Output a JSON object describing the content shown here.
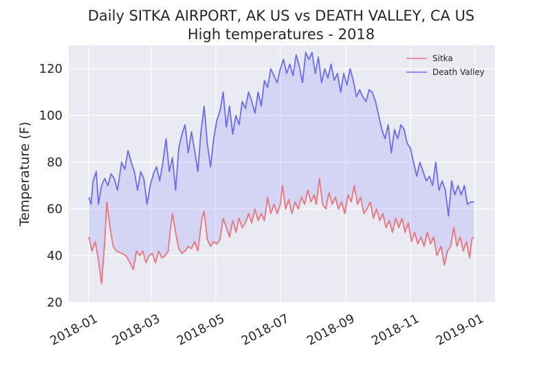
{
  "chart_data": {
    "type": "line",
    "title_line1": "Daily SITKA AIRPORT, AK US vs DEATH VALLEY, CA US",
    "title_line2": "High temperatures - 2018",
    "xlabel": "",
    "ylabel": "Temperature (F)",
    "xlim": [
      "2017-12-13",
      "2019-01-20"
    ],
    "ylim": [
      20,
      130
    ],
    "x_ticks": [
      "2018-01",
      "2018-03",
      "2018-05",
      "2018-07",
      "2018-09",
      "2018-11",
      "2019-01"
    ],
    "y_ticks": [
      20,
      40,
      60,
      80,
      100,
      120
    ],
    "grid": true,
    "legend_position": "upper-right",
    "fill_between": {
      "color": "#5a5aff",
      "alpha": 0.15
    },
    "series": [
      {
        "name": "Sitka",
        "color": "#e8747c",
        "points": [
          [
            "2018-01-01",
            48
          ],
          [
            "2018-01-04",
            42
          ],
          [
            "2018-01-07",
            46
          ],
          [
            "2018-01-10",
            38
          ],
          [
            "2018-01-13",
            28
          ],
          [
            "2018-01-16",
            46
          ],
          [
            "2018-01-18",
            63
          ],
          [
            "2018-01-21",
            52
          ],
          [
            "2018-01-24",
            44
          ],
          [
            "2018-01-27",
            42
          ],
          [
            "2018-02-01",
            41
          ],
          [
            "2018-02-05",
            40
          ],
          [
            "2018-02-09",
            37
          ],
          [
            "2018-02-12",
            34
          ],
          [
            "2018-02-15",
            42
          ],
          [
            "2018-02-18",
            40
          ],
          [
            "2018-02-21",
            42
          ],
          [
            "2018-02-24",
            37
          ],
          [
            "2018-02-27",
            40
          ],
          [
            "2018-03-02",
            41
          ],
          [
            "2018-03-05",
            37
          ],
          [
            "2018-03-08",
            42
          ],
          [
            "2018-03-11",
            39
          ],
          [
            "2018-03-14",
            40
          ],
          [
            "2018-03-17",
            42
          ],
          [
            "2018-03-19",
            51
          ],
          [
            "2018-03-21",
            58
          ],
          [
            "2018-03-24",
            50
          ],
          [
            "2018-03-27",
            43
          ],
          [
            "2018-03-30",
            41
          ],
          [
            "2018-04-02",
            42
          ],
          [
            "2018-04-05",
            44
          ],
          [
            "2018-04-08",
            43
          ],
          [
            "2018-04-11",
            46
          ],
          [
            "2018-04-14",
            42
          ],
          [
            "2018-04-18",
            56
          ],
          [
            "2018-04-20",
            59
          ],
          [
            "2018-04-23",
            47
          ],
          [
            "2018-04-26",
            44
          ],
          [
            "2018-04-29",
            46
          ],
          [
            "2018-05-02",
            45
          ],
          [
            "2018-05-05",
            47
          ],
          [
            "2018-05-08",
            56
          ],
          [
            "2018-05-11",
            52
          ],
          [
            "2018-05-14",
            48
          ],
          [
            "2018-05-17",
            55
          ],
          [
            "2018-05-20",
            50
          ],
          [
            "2018-05-23",
            56
          ],
          [
            "2018-05-26",
            52
          ],
          [
            "2018-05-29",
            54
          ],
          [
            "2018-06-01",
            58
          ],
          [
            "2018-06-04",
            54
          ],
          [
            "2018-06-07",
            60
          ],
          [
            "2018-06-10",
            55
          ],
          [
            "2018-06-13",
            58
          ],
          [
            "2018-06-16",
            55
          ],
          [
            "2018-06-19",
            65
          ],
          [
            "2018-06-22",
            58
          ],
          [
            "2018-06-25",
            62
          ],
          [
            "2018-06-28",
            58
          ],
          [
            "2018-07-01",
            62
          ],
          [
            "2018-07-03",
            70
          ],
          [
            "2018-07-06",
            60
          ],
          [
            "2018-07-09",
            64
          ],
          [
            "2018-07-12",
            58
          ],
          [
            "2018-07-15",
            63
          ],
          [
            "2018-07-18",
            60
          ],
          [
            "2018-07-21",
            65
          ],
          [
            "2018-07-24",
            62
          ],
          [
            "2018-07-27",
            68
          ],
          [
            "2018-07-30",
            63
          ],
          [
            "2018-08-02",
            66
          ],
          [
            "2018-08-04",
            62
          ],
          [
            "2018-08-07",
            73
          ],
          [
            "2018-08-10",
            62
          ],
          [
            "2018-08-13",
            60
          ],
          [
            "2018-08-16",
            67
          ],
          [
            "2018-08-19",
            62
          ],
          [
            "2018-08-22",
            65
          ],
          [
            "2018-08-25",
            60
          ],
          [
            "2018-08-28",
            63
          ],
          [
            "2018-08-31",
            58
          ],
          [
            "2018-09-03",
            66
          ],
          [
            "2018-09-06",
            63
          ],
          [
            "2018-09-09",
            70
          ],
          [
            "2018-09-12",
            62
          ],
          [
            "2018-09-15",
            65
          ],
          [
            "2018-09-18",
            58
          ],
          [
            "2018-09-21",
            60
          ],
          [
            "2018-09-24",
            63
          ],
          [
            "2018-09-27",
            56
          ],
          [
            "2018-09-30",
            60
          ],
          [
            "2018-10-03",
            55
          ],
          [
            "2018-10-06",
            58
          ],
          [
            "2018-10-09",
            52
          ],
          [
            "2018-10-12",
            55
          ],
          [
            "2018-10-15",
            50
          ],
          [
            "2018-10-18",
            56
          ],
          [
            "2018-10-21",
            52
          ],
          [
            "2018-10-24",
            56
          ],
          [
            "2018-10-27",
            50
          ],
          [
            "2018-10-30",
            54
          ],
          [
            "2018-11-02",
            46
          ],
          [
            "2018-11-05",
            50
          ],
          [
            "2018-11-08",
            45
          ],
          [
            "2018-11-11",
            48
          ],
          [
            "2018-11-14",
            44
          ],
          [
            "2018-11-17",
            50
          ],
          [
            "2018-11-20",
            45
          ],
          [
            "2018-11-23",
            48
          ],
          [
            "2018-11-26",
            40
          ],
          [
            "2018-11-30",
            44
          ],
          [
            "2018-12-03",
            36
          ],
          [
            "2018-12-06",
            42
          ],
          [
            "2018-12-09",
            44
          ],
          [
            "2018-12-12",
            52
          ],
          [
            "2018-12-15",
            44
          ],
          [
            "2018-12-18",
            48
          ],
          [
            "2018-12-21",
            42
          ],
          [
            "2018-12-24",
            46
          ],
          [
            "2018-12-27",
            39
          ],
          [
            "2018-12-29",
            47
          ],
          [
            "2018-12-31",
            48
          ]
        ]
      },
      {
        "name": "Death Valley",
        "color": "#6b6bf0",
        "points": [
          [
            "2018-01-01",
            65
          ],
          [
            "2018-01-03",
            62
          ],
          [
            "2018-01-05",
            72
          ],
          [
            "2018-01-08",
            76
          ],
          [
            "2018-01-10",
            62
          ],
          [
            "2018-01-13",
            70
          ],
          [
            "2018-01-16",
            73
          ],
          [
            "2018-01-19",
            70
          ],
          [
            "2018-01-22",
            75
          ],
          [
            "2018-01-25",
            73
          ],
          [
            "2018-01-28",
            68
          ],
          [
            "2018-02-01",
            80
          ],
          [
            "2018-02-04",
            77
          ],
          [
            "2018-02-07",
            85
          ],
          [
            "2018-02-10",
            80
          ],
          [
            "2018-02-13",
            76
          ],
          [
            "2018-02-16",
            68
          ],
          [
            "2018-02-19",
            76
          ],
          [
            "2018-02-22",
            73
          ],
          [
            "2018-02-25",
            62
          ],
          [
            "2018-02-28",
            70
          ],
          [
            "2018-03-03",
            75
          ],
          [
            "2018-03-06",
            78
          ],
          [
            "2018-03-09",
            72
          ],
          [
            "2018-03-12",
            80
          ],
          [
            "2018-03-15",
            90
          ],
          [
            "2018-03-18",
            76
          ],
          [
            "2018-03-21",
            82
          ],
          [
            "2018-03-24",
            68
          ],
          [
            "2018-03-27",
            86
          ],
          [
            "2018-03-30",
            92
          ],
          [
            "2018-04-02",
            96
          ],
          [
            "2018-04-05",
            84
          ],
          [
            "2018-04-08",
            93
          ],
          [
            "2018-04-11",
            85
          ],
          [
            "2018-04-14",
            76
          ],
          [
            "2018-04-17",
            93
          ],
          [
            "2018-04-20",
            104
          ],
          [
            "2018-04-23",
            88
          ],
          [
            "2018-04-26",
            78
          ],
          [
            "2018-04-29",
            90
          ],
          [
            "2018-05-02",
            98
          ],
          [
            "2018-05-05",
            102
          ],
          [
            "2018-05-08",
            110
          ],
          [
            "2018-05-11",
            95
          ],
          [
            "2018-05-14",
            104
          ],
          [
            "2018-05-17",
            92
          ],
          [
            "2018-05-20",
            100
          ],
          [
            "2018-05-23",
            96
          ],
          [
            "2018-05-26",
            106
          ],
          [
            "2018-05-29",
            103
          ],
          [
            "2018-06-01",
            110
          ],
          [
            "2018-06-04",
            106
          ],
          [
            "2018-06-07",
            101
          ],
          [
            "2018-06-10",
            110
          ],
          [
            "2018-06-13",
            104
          ],
          [
            "2018-06-16",
            115
          ],
          [
            "2018-06-19",
            112
          ],
          [
            "2018-06-22",
            120
          ],
          [
            "2018-06-25",
            117
          ],
          [
            "2018-06-28",
            114
          ],
          [
            "2018-07-01",
            120
          ],
          [
            "2018-07-04",
            124
          ],
          [
            "2018-07-07",
            118
          ],
          [
            "2018-07-10",
            122
          ],
          [
            "2018-07-13",
            117
          ],
          [
            "2018-07-16",
            126
          ],
          [
            "2018-07-19",
            121
          ],
          [
            "2018-07-22",
            114
          ],
          [
            "2018-07-25",
            127
          ],
          [
            "2018-07-28",
            124
          ],
          [
            "2018-07-31",
            127
          ],
          [
            "2018-08-03",
            118
          ],
          [
            "2018-08-06",
            125
          ],
          [
            "2018-08-09",
            114
          ],
          [
            "2018-08-12",
            120
          ],
          [
            "2018-08-15",
            116
          ],
          [
            "2018-08-18",
            122
          ],
          [
            "2018-08-21",
            115
          ],
          [
            "2018-08-24",
            118
          ],
          [
            "2018-08-27",
            110
          ],
          [
            "2018-08-30",
            118
          ],
          [
            "2018-09-02",
            113
          ],
          [
            "2018-09-05",
            120
          ],
          [
            "2018-09-08",
            115
          ],
          [
            "2018-09-11",
            108
          ],
          [
            "2018-09-14",
            111
          ],
          [
            "2018-09-17",
            108
          ],
          [
            "2018-09-20",
            106
          ],
          [
            "2018-09-23",
            111
          ],
          [
            "2018-09-26",
            110
          ],
          [
            "2018-09-29",
            106
          ],
          [
            "2018-10-02",
            100
          ],
          [
            "2018-10-05",
            94
          ],
          [
            "2018-10-08",
            90
          ],
          [
            "2018-10-11",
            96
          ],
          [
            "2018-10-14",
            84
          ],
          [
            "2018-10-17",
            94
          ],
          [
            "2018-10-20",
            90
          ],
          [
            "2018-10-23",
            96
          ],
          [
            "2018-10-26",
            94
          ],
          [
            "2018-10-29",
            88
          ],
          [
            "2018-11-01",
            86
          ],
          [
            "2018-11-04",
            80
          ],
          [
            "2018-11-07",
            74
          ],
          [
            "2018-11-10",
            80
          ],
          [
            "2018-11-13",
            76
          ],
          [
            "2018-11-16",
            72
          ],
          [
            "2018-11-19",
            74
          ],
          [
            "2018-11-22",
            70
          ],
          [
            "2018-11-25",
            80
          ],
          [
            "2018-11-28",
            68
          ],
          [
            "2018-12-01",
            72
          ],
          [
            "2018-12-04",
            68
          ],
          [
            "2018-12-07",
            57
          ],
          [
            "2018-12-10",
            72
          ],
          [
            "2018-12-13",
            66
          ],
          [
            "2018-12-16",
            70
          ],
          [
            "2018-12-19",
            66
          ],
          [
            "2018-12-22",
            70
          ],
          [
            "2018-12-25",
            62
          ],
          [
            "2018-12-28",
            63
          ],
          [
            "2018-12-31",
            63
          ]
        ]
      }
    ]
  }
}
